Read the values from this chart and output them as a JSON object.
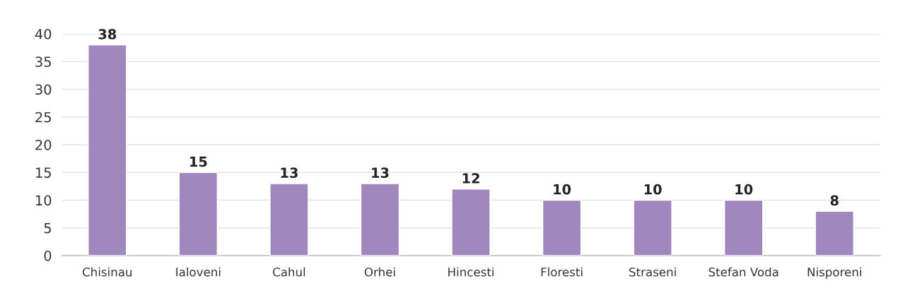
{
  "chart_data": {
    "type": "bar",
    "categories": [
      "Chisinau",
      "Ialoveni",
      "Cahul",
      "Orhei",
      "Hincesti",
      "Floresti",
      "Straseni",
      "Stefan Voda",
      "Nisporeni"
    ],
    "values": [
      38,
      15,
      13,
      13,
      12,
      10,
      10,
      10,
      8
    ],
    "color": "#a087be",
    "ylim": [
      0,
      40
    ],
    "yticks": [
      0,
      5,
      10,
      15,
      20,
      25,
      30,
      35,
      40
    ],
    "grid": "y",
    "data_labels": true
  }
}
